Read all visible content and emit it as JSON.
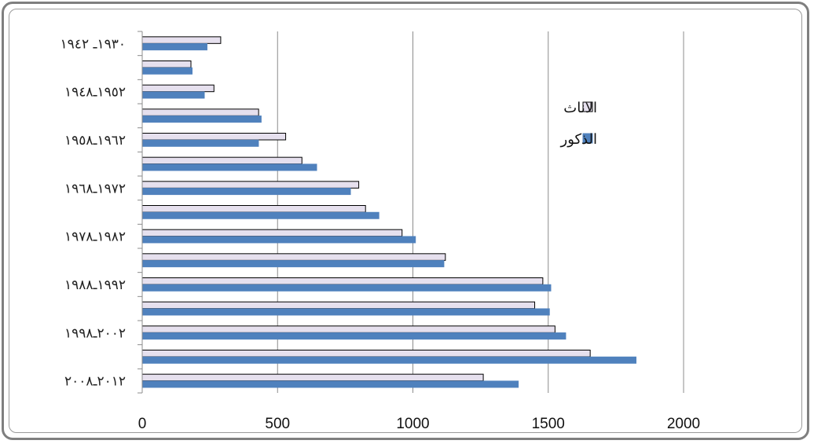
{
  "chart_data": {
    "type": "bar",
    "orientation": "horizontal",
    "category_labels": [
      "١٩٣٠ـ ١٩٤٢",
      "١٩٥٢ـ١٩٤٨",
      "١٩٦٢ـ١٩٥٨",
      "١٩٧٢ـ١٩٦٨",
      "١٩٨٢ـ١٩٧٨",
      "١٩٩٢ـ١٩٨٨",
      "٢٠٠٢ـ١٩٩٨",
      "٢٠١٢ـ٢٠٠٨"
    ],
    "label_every": 2,
    "series": [
      {
        "name": "الاناث",
        "color": "#e6e0ee",
        "edge": "#000000",
        "values": [
          290,
          180,
          265,
          430,
          530,
          590,
          800,
          825,
          960,
          1120,
          1480,
          1450,
          1525,
          1655,
          1260
        ]
      },
      {
        "name": "الذكور",
        "color": "#4f81bd",
        "edge": "#4f81bd",
        "values": [
          240,
          185,
          230,
          440,
          430,
          645,
          770,
          875,
          1010,
          1115,
          1510,
          1505,
          1565,
          1825,
          1390
        ]
      }
    ],
    "xticks": [
      "0",
      "500",
      "1000",
      "1500",
      "2000"
    ],
    "xlim": [
      0,
      2000
    ],
    "grid": "vertical",
    "legend_position": "right"
  }
}
